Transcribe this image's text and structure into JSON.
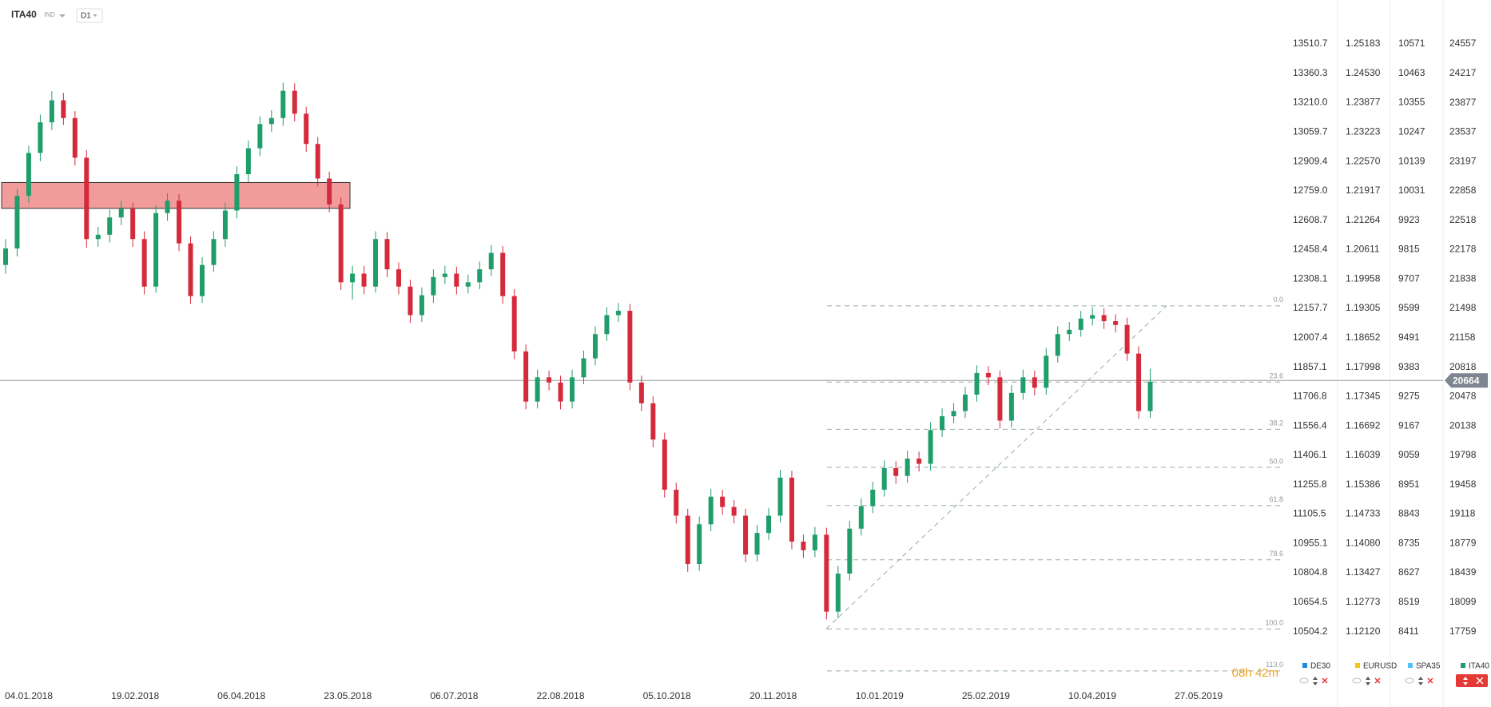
{
  "chart_data": {
    "type": "candlestick",
    "symbol": "ITA40",
    "instrument_type": "IND",
    "interval": "D1",
    "colors": {
      "up": "#1f9d6b",
      "down": "#d52a3c"
    },
    "ohlc": [
      [
        22000,
        22300,
        21900,
        22191
      ],
      [
        22191,
        22880,
        22100,
        22800
      ],
      [
        22800,
        23380,
        22720,
        23296
      ],
      [
        23296,
        23740,
        23200,
        23650
      ],
      [
        23650,
        24010,
        23560,
        23905
      ],
      [
        23905,
        23990,
        23620,
        23700
      ],
      [
        23700,
        23780,
        23150,
        23241
      ],
      [
        23241,
        23330,
        22200,
        22300
      ],
      [
        22300,
        22440,
        22210,
        22350
      ],
      [
        22350,
        22640,
        22260,
        22550
      ],
      [
        22550,
        22740,
        22460,
        22650
      ],
      [
        22650,
        22720,
        22210,
        22300
      ],
      [
        22300,
        22390,
        21660,
        21750
      ],
      [
        21750,
        22690,
        21680,
        22600
      ],
      [
        22600,
        22830,
        22510,
        22744
      ],
      [
        22744,
        22820,
        22160,
        22250
      ],
      [
        22250,
        22330,
        21550,
        21640
      ],
      [
        21640,
        22090,
        21560,
        22000
      ],
      [
        22000,
        22390,
        21920,
        22300
      ],
      [
        22300,
        22720,
        22210,
        22630
      ],
      [
        22630,
        23140,
        22540,
        23050
      ],
      [
        23050,
        23440,
        22960,
        23350
      ],
      [
        23350,
        23720,
        23260,
        23630
      ],
      [
        23630,
        23790,
        23540,
        23700
      ],
      [
        23700,
        24110,
        23610,
        24015
      ],
      [
        24015,
        24100,
        23660,
        23750
      ],
      [
        23750,
        23830,
        23310,
        23400
      ],
      [
        23400,
        23480,
        22910,
        23000
      ],
      [
        23000,
        23080,
        22610,
        22700
      ],
      [
        22700,
        22780,
        21710,
        21800
      ],
      [
        21800,
        21990,
        21600,
        21900
      ],
      [
        21900,
        21990,
        21660,
        21750
      ],
      [
        21750,
        22390,
        21680,
        22300
      ],
      [
        22300,
        22380,
        21860,
        21950
      ],
      [
        21950,
        22030,
        21660,
        21750
      ],
      [
        21750,
        21830,
        21330,
        21420
      ],
      [
        21420,
        21740,
        21340,
        21650
      ],
      [
        21650,
        21950,
        21560,
        21860
      ],
      [
        21860,
        21990,
        21780,
        21900
      ],
      [
        21900,
        21980,
        21660,
        21750
      ],
      [
        21750,
        21890,
        21670,
        21800
      ],
      [
        21800,
        22040,
        21720,
        21950
      ],
      [
        21950,
        22230,
        21870,
        22140
      ],
      [
        22140,
        22220,
        21550,
        21640
      ],
      [
        21640,
        21720,
        20910,
        21000
      ],
      [
        21000,
        21080,
        20330,
        20420
      ],
      [
        20420,
        20790,
        20340,
        20700
      ],
      [
        20700,
        20780,
        20550,
        20640
      ],
      [
        20640,
        20720,
        20330,
        20420
      ],
      [
        20420,
        20790,
        20340,
        20700
      ],
      [
        20700,
        21010,
        20620,
        20920
      ],
      [
        20920,
        21290,
        20840,
        21200
      ],
      [
        21200,
        21510,
        21120,
        21420
      ],
      [
        21420,
        21560,
        21340,
        21470
      ],
      [
        21470,
        21550,
        20550,
        20640
      ],
      [
        20640,
        20720,
        20310,
        20400
      ],
      [
        20400,
        20480,
        19890,
        19980
      ],
      [
        19980,
        20060,
        19310,
        19400
      ],
      [
        19400,
        19480,
        19010,
        19100
      ],
      [
        19100,
        19180,
        18450,
        18540
      ],
      [
        18540,
        19090,
        18460,
        19000
      ],
      [
        19000,
        19410,
        18920,
        19320
      ],
      [
        19320,
        19400,
        19110,
        19200
      ],
      [
        19200,
        19280,
        19010,
        19100
      ],
      [
        19100,
        19180,
        18560,
        18650
      ],
      [
        18650,
        18990,
        18570,
        18900
      ],
      [
        18900,
        19190,
        18820,
        19100
      ],
      [
        19100,
        19630,
        19020,
        19540
      ],
      [
        19540,
        19620,
        18710,
        18800
      ],
      [
        18800,
        18880,
        18610,
        18700
      ],
      [
        18700,
        18970,
        18620,
        18880
      ],
      [
        18880,
        18960,
        17900,
        17990
      ],
      [
        17990,
        18520,
        17910,
        18430
      ],
      [
        18430,
        19040,
        18350,
        18950
      ],
      [
        18950,
        19300,
        18870,
        19210
      ],
      [
        19210,
        19490,
        19130,
        19400
      ],
      [
        19400,
        19740,
        19320,
        19650
      ],
      [
        19650,
        19730,
        19470,
        19560
      ],
      [
        19560,
        19850,
        19480,
        19760
      ],
      [
        19760,
        19840,
        19610,
        19700
      ],
      [
        19700,
        20180,
        19620,
        20090
      ],
      [
        20090,
        20340,
        20010,
        20250
      ],
      [
        20250,
        20400,
        20170,
        20310
      ],
      [
        20310,
        20590,
        20230,
        20500
      ],
      [
        20500,
        20840,
        20420,
        20750
      ],
      [
        20750,
        20830,
        20610,
        20700
      ],
      [
        20700,
        20780,
        20110,
        20200
      ],
      [
        20200,
        20610,
        20120,
        20520
      ],
      [
        20520,
        20790,
        20440,
        20700
      ],
      [
        20700,
        20780,
        20490,
        20580
      ],
      [
        20580,
        21040,
        20500,
        20950
      ],
      [
        20950,
        21290,
        20870,
        21200
      ],
      [
        21200,
        21340,
        21120,
        21250
      ],
      [
        21250,
        21470,
        21170,
        21380
      ],
      [
        21380,
        21510,
        21300,
        21420
      ],
      [
        21420,
        21500,
        21260,
        21350
      ],
      [
        21350,
        21430,
        21220,
        21306
      ],
      [
        21306,
        21390,
        20890,
        20975
      ],
      [
        20975,
        21060,
        20220,
        20310
      ],
      [
        20310,
        20800,
        20230,
        20650
      ]
    ],
    "ylim": [
      17759,
      24557
    ],
    "yticks": [
      24557,
      24217,
      23877,
      23537,
      23197,
      22858,
      22518,
      22178,
      21838,
      21498,
      21158,
      20818,
      20478,
      20138,
      19798,
      19458,
      19118,
      18779,
      18439,
      18099,
      17759
    ],
    "x_labels": [
      "04.01.2018",
      "19.02.2018",
      "06.04.2018",
      "23.05.2018",
      "06.07.2018",
      "22.08.2018",
      "05.10.2018",
      "20.11.2018",
      "10.01.2019",
      "25.02.2019",
      "10.04.2019",
      "27.05.2019"
    ],
    "other_scales": [
      {
        "name": "DE30",
        "color": "#1e88e5",
        "ylim": [
          10504.2,
          13510.7
        ],
        "ticks": [
          13510.7,
          13360.3,
          {
            "value": 13210,
            "label": "13210.0"
          },
          13059.7,
          12909.4,
          {
            "value": 12759,
            "label": "12759.0"
          },
          12608.7,
          12458.4,
          12308.1,
          12157.7,
          12007.4,
          11857.1,
          11706.8,
          11556.4,
          11406.1,
          11255.8,
          11105.5,
          10955.1,
          10804.8,
          10654.5,
          10504.2
        ]
      },
      {
        "name": "EURUSD",
        "color": "#f5c518",
        "ylim": [
          1.1212,
          1.25183
        ],
        "ticks": [
          1.25183,
          {
            "value": 1.2453,
            "label": "1.24530"
          },
          1.23877,
          1.23223,
          {
            "value": 1.2257,
            "label": "1.22570"
          },
          1.21917,
          1.21264,
          1.20611,
          1.19958,
          1.19305,
          1.18652,
          1.17998,
          1.17345,
          1.16692,
          1.16039,
          1.15386,
          1.14733,
          {
            "value": 1.1408,
            "label": "1.14080"
          },
          1.13427,
          1.12773,
          {
            "value": 1.1212,
            "label": "1.12120"
          }
        ]
      },
      {
        "name": "SPA35",
        "color": "#4fc3f7",
        "ylim": [
          8411,
          10571
        ],
        "ticks": [
          10571,
          10463,
          10355,
          10247,
          10139,
          10031,
          9923,
          9815,
          9707,
          9599,
          9491,
          9383,
          9275,
          9167,
          9059,
          8951,
          8843,
          8735,
          8627,
          8519,
          8411
        ]
      }
    ],
    "last_price": 20664,
    "zone": {
      "high": 22954,
      "low": 22655,
      "color": "#f19c9b"
    },
    "fib": {
      "high": 21527,
      "low": 17790,
      "levels": [
        {
          "value": 0,
          "label": "0.0"
        },
        23.6,
        38.2,
        {
          "value": 50,
          "label": "50.0"
        },
        61.8,
        78.6,
        {
          "value": 100,
          "label": "100.0"
        },
        {
          "value": 113,
          "label": "113.0"
        }
      ]
    },
    "countdown": "08h 42m"
  }
}
